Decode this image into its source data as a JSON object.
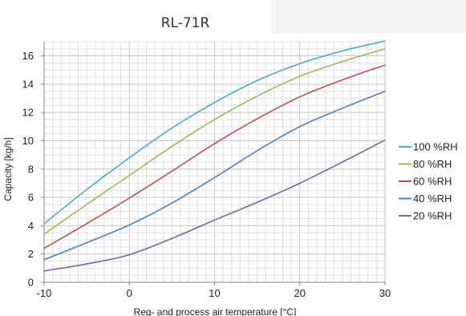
{
  "chart_data": {
    "type": "line",
    "title": "RL-71R",
    "xlabel": "Reg- and process air temperature [°C]",
    "ylabel": "Capacity [kg/h]",
    "xlim": [
      -10,
      30
    ],
    "ylim": [
      0,
      17
    ],
    "xticks": [
      -10,
      0,
      10,
      20,
      30
    ],
    "yticks": [
      0,
      2,
      4,
      6,
      8,
      10,
      12,
      14,
      16
    ],
    "grid": true,
    "legend_position": "right",
    "x": [
      -10,
      -5,
      0,
      5,
      10,
      15,
      20,
      25,
      30
    ],
    "series": [
      {
        "name": "100 %RH",
        "color": "#4BACC6",
        "values": [
          4.15,
          6.55,
          8.8,
          10.9,
          12.7,
          14.25,
          15.45,
          16.35,
          17.05
        ]
      },
      {
        "name": "80 %RH",
        "color": "#9BBB59",
        "values": [
          3.4,
          5.5,
          7.55,
          9.6,
          11.5,
          13.15,
          14.55,
          15.6,
          16.5
        ]
      },
      {
        "name": "60 %RH",
        "color": "#C0504D",
        "values": [
          2.4,
          4.15,
          5.95,
          7.85,
          9.8,
          11.55,
          13.1,
          14.3,
          15.35
        ]
      },
      {
        "name": "40 %RH",
        "color": "#4F81BD",
        "values": [
          1.6,
          2.8,
          4.05,
          5.6,
          7.4,
          9.3,
          11.0,
          12.3,
          13.5
        ]
      },
      {
        "name": "20 %RH",
        "color": "#8064A2",
        "values": [
          0.8,
          1.3,
          1.95,
          3.1,
          4.4,
          5.65,
          7.0,
          8.5,
          10.05
        ]
      }
    ]
  }
}
